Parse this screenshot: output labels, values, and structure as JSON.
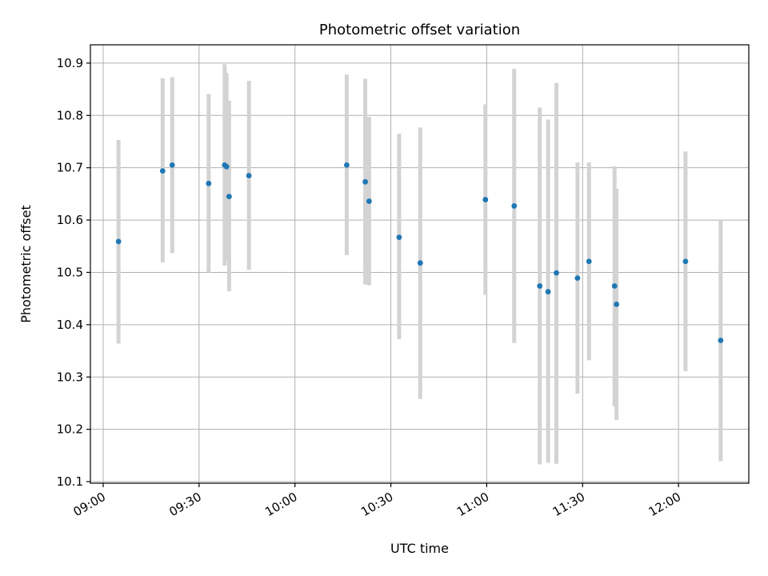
{
  "chart_data": {
    "type": "scatter",
    "title": "Photometric offset variation",
    "xlabel": "UTC time",
    "ylabel": "Photometric offset",
    "grid": true,
    "x_unit": "minutes since 09:00 UTC",
    "xlim": [
      -4,
      202
    ],
    "ylim": [
      10.097,
      10.935
    ],
    "x_ticks": [
      {
        "value": 0,
        "label": "09:00"
      },
      {
        "value": 30,
        "label": "09:30"
      },
      {
        "value": 60,
        "label": "10:00"
      },
      {
        "value": 90,
        "label": "10:30"
      },
      {
        "value": 120,
        "label": "11:00"
      },
      {
        "value": 150,
        "label": "11:30"
      },
      {
        "value": 180,
        "label": "12:00"
      }
    ],
    "y_ticks": [
      {
        "value": 10.1,
        "label": "10.1"
      },
      {
        "value": 10.2,
        "label": "10.2"
      },
      {
        "value": 10.3,
        "label": "10.3"
      },
      {
        "value": 10.4,
        "label": "10.4"
      },
      {
        "value": 10.5,
        "label": "10.5"
      },
      {
        "value": 10.6,
        "label": "10.6"
      },
      {
        "value": 10.7,
        "label": "10.7"
      },
      {
        "value": 10.8,
        "label": "10.8"
      },
      {
        "value": 10.9,
        "label": "10.9"
      }
    ],
    "point_color": "#1f77b4",
    "errorbar_color": "#d3d3d3",
    "points": [
      {
        "x": 4.8,
        "y": 10.559,
        "lo": 10.364,
        "hi": 10.753
      },
      {
        "x": 18.6,
        "y": 10.694,
        "lo": 10.519,
        "hi": 10.871
      },
      {
        "x": 21.6,
        "y": 10.705,
        "lo": 10.537,
        "hi": 10.873
      },
      {
        "x": 33.0,
        "y": 10.67,
        "lo": 10.5,
        "hi": 10.841
      },
      {
        "x": 38.0,
        "y": 10.705,
        "lo": 10.513,
        "hi": 10.898
      },
      {
        "x": 38.6,
        "y": 10.702,
        "lo": 10.522,
        "hi": 10.881
      },
      {
        "x": 39.4,
        "y": 10.645,
        "lo": 10.464,
        "hi": 10.828
      },
      {
        "x": 45.6,
        "y": 10.685,
        "lo": 10.505,
        "hi": 10.866
      },
      {
        "x": 76.2,
        "y": 10.705,
        "lo": 10.533,
        "hi": 10.878
      },
      {
        "x": 82.0,
        "y": 10.673,
        "lo": 10.477,
        "hi": 10.87
      },
      {
        "x": 83.2,
        "y": 10.636,
        "lo": 10.475,
        "hi": 10.797
      },
      {
        "x": 92.6,
        "y": 10.567,
        "lo": 10.372,
        "hi": 10.765
      },
      {
        "x": 99.2,
        "y": 10.518,
        "lo": 10.258,
        "hi": 10.777
      },
      {
        "x": 119.6,
        "y": 10.639,
        "lo": 10.457,
        "hi": 10.821
      },
      {
        "x": 128.6,
        "y": 10.627,
        "lo": 10.365,
        "hi": 10.889
      },
      {
        "x": 136.6,
        "y": 10.474,
        "lo": 10.133,
        "hi": 10.815
      },
      {
        "x": 139.2,
        "y": 10.463,
        "lo": 10.136,
        "hi": 10.792
      },
      {
        "x": 141.8,
        "y": 10.499,
        "lo": 10.134,
        "hi": 10.862
      },
      {
        "x": 148.4,
        "y": 10.489,
        "lo": 10.268,
        "hi": 10.71
      },
      {
        "x": 152.0,
        "y": 10.521,
        "lo": 10.332,
        "hi": 10.71
      },
      {
        "x": 160.0,
        "y": 10.474,
        "lo": 10.244,
        "hi": 10.703
      },
      {
        "x": 160.6,
        "y": 10.439,
        "lo": 10.218,
        "hi": 10.66
      },
      {
        "x": 182.2,
        "y": 10.521,
        "lo": 10.311,
        "hi": 10.731
      },
      {
        "x": 193.2,
        "y": 10.37,
        "lo": 10.139,
        "hi": 10.6
      }
    ]
  }
}
